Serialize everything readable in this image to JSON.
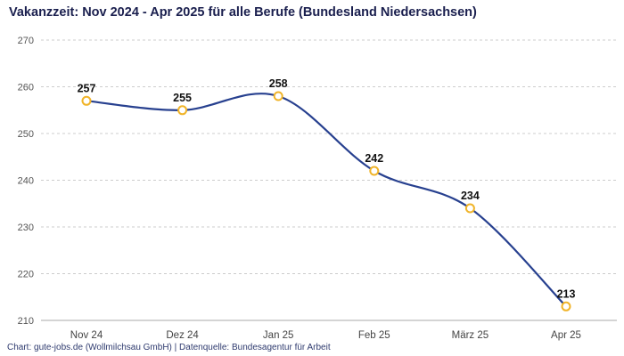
{
  "attribution": "Chart: gute-jobs.de (Wollmilchsau GmbH) | Datenquelle: Bundesagentur für Arbeit",
  "chart_data": {
    "type": "line",
    "title": "Vakanzzeit: Nov 2024 - Apr 2025 für alle Berufe (Bundesland Niedersachsen)",
    "categories": [
      "Nov 24",
      "Dez 24",
      "Jan 25",
      "Feb 25",
      "März 25",
      "Apr 25"
    ],
    "values": [
      257,
      255,
      258,
      242,
      234,
      213
    ],
    "xlabel": "",
    "ylabel": "",
    "ylim": [
      210,
      270
    ],
    "yticks": [
      210,
      220,
      230,
      240,
      250,
      260,
      270
    ],
    "grid": "dashed-horizontal",
    "legend": "none",
    "data_labels": true,
    "colors": {
      "line": "#27408f",
      "marker_stroke": "#f0b429",
      "marker_fill": "#ffffff",
      "gridline": "#cccccc",
      "axis_line": "#aaaaaa"
    }
  }
}
